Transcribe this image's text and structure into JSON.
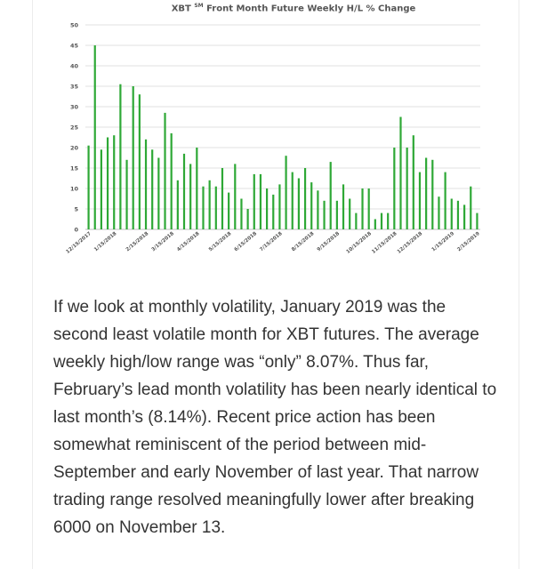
{
  "chart_data": {
    "type": "bar",
    "title_prefix": "XBT",
    "title_sup": "SM",
    "title_suffix": "Front Month Future Weekly H/L % Change",
    "xlabel": "",
    "ylabel": "",
    "ylim": [
      0,
      50
    ],
    "yticks": [
      0,
      5,
      10,
      15,
      20,
      25,
      30,
      35,
      40,
      45,
      50
    ],
    "grid": true,
    "bar_color": "#2ea836",
    "x_tick_labels": [
      "12/15/2017",
      "1/15/2018",
      "2/15/2018",
      "3/15/2018",
      "4/15/2018",
      "5/15/2018",
      "6/15/2018",
      "7/15/2018",
      "8/15/2018",
      "9/15/2018",
      "10/15/2018",
      "11/15/2018",
      "12/15/2018",
      "1/15/2019",
      "2/15/2019"
    ],
    "values": [
      20.5,
      45,
      19.5,
      22.5,
      23,
      35.5,
      17,
      35,
      33,
      22,
      19.5,
      17.5,
      28.5,
      23.5,
      12,
      18.5,
      16,
      20,
      10.5,
      12,
      10.5,
      15,
      9,
      16,
      7.5,
      5,
      13.5,
      13.5,
      10,
      8.5,
      11,
      18,
      14,
      12.5,
      15,
      11.5,
      9.5,
      7,
      16.5,
      7,
      11,
      7.5,
      4,
      10,
      10,
      2.5,
      4,
      4,
      20,
      27.5,
      20,
      23,
      14,
      17.5,
      17,
      8,
      14,
      7.5,
      7,
      6,
      10.5,
      4
    ]
  },
  "article": {
    "paragraph": "If we look at monthly volatility, January 2019 was the second least volatile month for XBT futures. The average weekly high/low range was “only” 8.07%. Thus far, February’s lead month volatility has been nearly identical to last month’s (8.14%). Recent price action has been somewhat reminiscent of the period between mid-September and early November of last year. That narrow trading range resolved meaningfully lower after breaking 6000 on November 13."
  }
}
